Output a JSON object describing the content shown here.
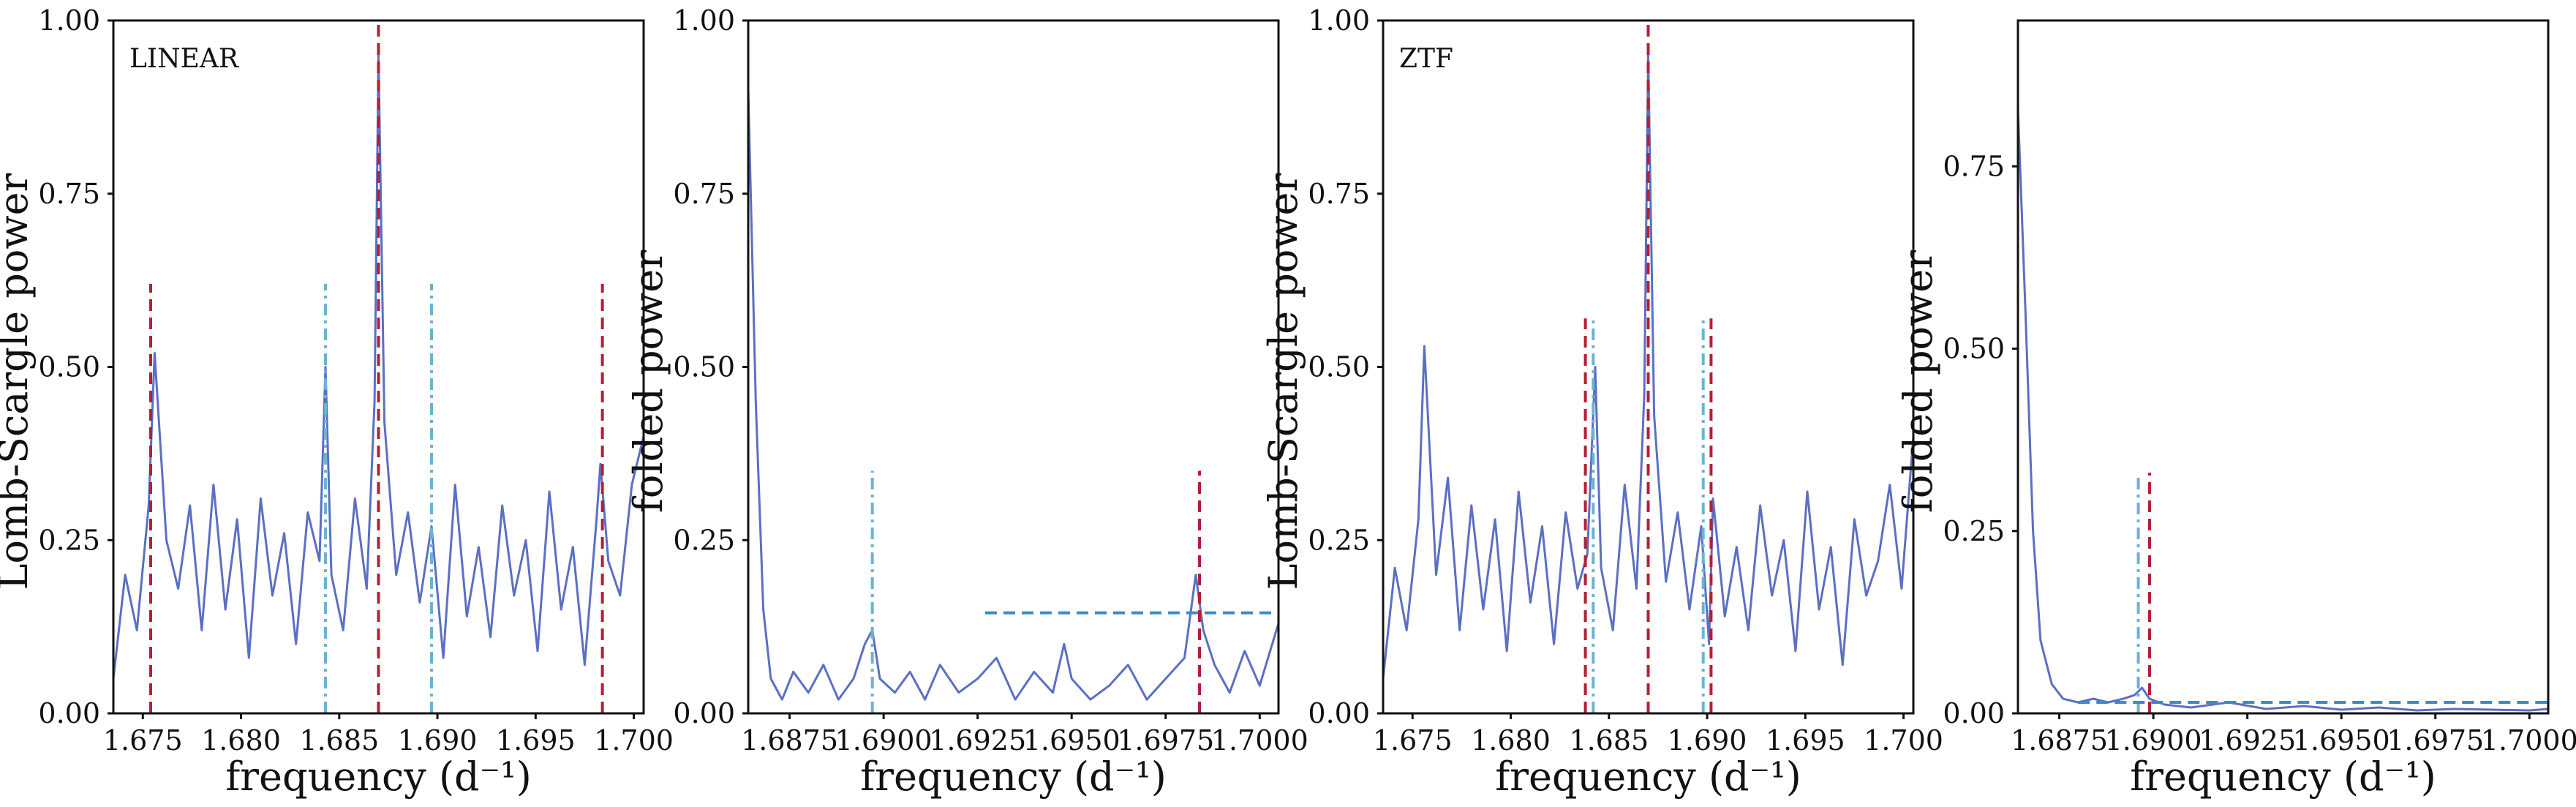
{
  "chart_data": [
    {
      "type": "line",
      "panel_label": "LINEAR",
      "xlabel": "frequency (d⁻¹)",
      "ylabel": "Lomb-Scargle power",
      "xlim": [
        1.6735,
        1.7005
      ],
      "ylim": [
        0,
        1
      ],
      "xticks": [
        1.675,
        1.68,
        1.685,
        1.69,
        1.695,
        1.7
      ],
      "xtick_labels": [
        "1.675",
        "1.680",
        "1.685",
        "1.690",
        "1.695",
        "1.700"
      ],
      "yticks": [
        0,
        0.25,
        0.5,
        0.75,
        1.0
      ],
      "ytick_labels": [
        "0.00",
        "0.25",
        "0.50",
        "0.75",
        "1.00"
      ],
      "series": [
        {
          "color": "#5b6fc4",
          "x": [
            1.6735,
            1.6741,
            1.6747,
            1.6753,
            1.6756,
            1.6762,
            1.6768,
            1.6774,
            1.678,
            1.6786,
            1.6792,
            1.6798,
            1.6804,
            1.681,
            1.6816,
            1.6822,
            1.6828,
            1.6834,
            1.684,
            1.6843,
            1.6846,
            1.6852,
            1.6858,
            1.6864,
            1.6868,
            1.687,
            1.6873,
            1.6879,
            1.6885,
            1.6891,
            1.6897,
            1.6903,
            1.6909,
            1.6915,
            1.6921,
            1.6927,
            1.6933,
            1.6939,
            1.6945,
            1.6951,
            1.6957,
            1.6963,
            1.6969,
            1.6975,
            1.6981,
            1.6983,
            1.6987,
            1.6993,
            1.6999,
            1.7005
          ],
          "y": [
            0.05,
            0.2,
            0.12,
            0.3,
            0.52,
            0.25,
            0.18,
            0.3,
            0.12,
            0.33,
            0.15,
            0.28,
            0.08,
            0.31,
            0.17,
            0.26,
            0.1,
            0.29,
            0.22,
            0.5,
            0.2,
            0.12,
            0.31,
            0.18,
            0.45,
            0.95,
            0.42,
            0.2,
            0.29,
            0.16,
            0.27,
            0.08,
            0.33,
            0.14,
            0.24,
            0.11,
            0.3,
            0.17,
            0.25,
            0.09,
            0.32,
            0.15,
            0.24,
            0.07,
            0.28,
            0.36,
            0.22,
            0.17,
            0.33,
            0.4
          ]
        }
      ],
      "vlines": [
        {
          "x": 1.6754,
          "ymax": 0.62,
          "color": "#b51f34",
          "style": "dashed"
        },
        {
          "x": 1.687,
          "ymax": 1.0,
          "color": "#b51f34",
          "style": "dashed"
        },
        {
          "x": 1.6984,
          "ymax": 0.62,
          "color": "#b51f34",
          "style": "dashed"
        },
        {
          "x": 1.6843,
          "ymax": 0.62,
          "color": "#6bb3d1",
          "style": "dashdot"
        },
        {
          "x": 1.6897,
          "ymax": 0.62,
          "color": "#6bb3d1",
          "style": "dashdot"
        }
      ],
      "hlines": []
    },
    {
      "type": "line",
      "panel_label": "",
      "xlabel": "frequency (d⁻¹)",
      "ylabel": "folded power",
      "xlim": [
        1.6864,
        1.7005
      ],
      "ylim": [
        0,
        1
      ],
      "xticks": [
        1.6875,
        1.69,
        1.6925,
        1.695,
        1.6975,
        1.7
      ],
      "xtick_labels": [
        "1.6875",
        "1.6900",
        "1.6925",
        "1.6950",
        "1.6975",
        "1.7000"
      ],
      "yticks": [
        0,
        0.25,
        0.5,
        0.75,
        1.0
      ],
      "ytick_labels": [
        "0.00",
        "0.25",
        "0.50",
        "0.75",
        "1.00"
      ],
      "series": [
        {
          "color": "#5b6fc4",
          "x": [
            1.6864,
            1.6866,
            1.6868,
            1.687,
            1.6873,
            1.6876,
            1.688,
            1.6884,
            1.6888,
            1.6892,
            1.6895,
            1.6897,
            1.6899,
            1.6903,
            1.6907,
            1.6911,
            1.6915,
            1.692,
            1.6925,
            1.693,
            1.6935,
            1.694,
            1.6945,
            1.6948,
            1.695,
            1.6955,
            1.696,
            1.6965,
            1.697,
            1.6975,
            1.698,
            1.6983,
            1.6985,
            1.6988,
            1.6992,
            1.6996,
            1.7,
            1.7005
          ],
          "y": [
            0.9,
            0.45,
            0.15,
            0.05,
            0.02,
            0.06,
            0.03,
            0.07,
            0.02,
            0.05,
            0.1,
            0.12,
            0.05,
            0.03,
            0.06,
            0.02,
            0.07,
            0.03,
            0.05,
            0.08,
            0.02,
            0.06,
            0.03,
            0.1,
            0.05,
            0.02,
            0.04,
            0.07,
            0.02,
            0.05,
            0.08,
            0.2,
            0.12,
            0.07,
            0.03,
            0.09,
            0.04,
            0.13
          ]
        }
      ],
      "vlines": [
        {
          "x": 1.6984,
          "ymax": 0.35,
          "color": "#b51f34",
          "style": "dashed"
        },
        {
          "x": 1.6897,
          "ymax": 0.35,
          "color": "#6bb3d1",
          "style": "dashdot"
        }
      ],
      "hlines": [
        {
          "y": 0.145,
          "xmin": 1.6927,
          "xmax": 1.7005,
          "color": "#3d8bc4",
          "style": "dashed"
        }
      ]
    },
    {
      "type": "line",
      "panel_label": "ZTF",
      "xlabel": "frequency (d⁻¹)",
      "ylabel": "Lomb-Scargle power",
      "xlim": [
        1.6735,
        1.7005
      ],
      "ylim": [
        0,
        1
      ],
      "xticks": [
        1.675,
        1.68,
        1.685,
        1.69,
        1.695,
        1.7
      ],
      "xtick_labels": [
        "1.675",
        "1.680",
        "1.685",
        "1.690",
        "1.695",
        "1.700"
      ],
      "yticks": [
        0,
        0.25,
        0.5,
        0.75,
        1.0
      ],
      "ytick_labels": [
        "0.00",
        "0.25",
        "0.50",
        "0.75",
        "1.00"
      ],
      "series": [
        {
          "color": "#5b6fc4",
          "x": [
            1.6735,
            1.6741,
            1.6747,
            1.6753,
            1.6756,
            1.6762,
            1.6768,
            1.6774,
            1.678,
            1.6786,
            1.6792,
            1.6798,
            1.6804,
            1.681,
            1.6816,
            1.6822,
            1.6828,
            1.6834,
            1.6839,
            1.6843,
            1.6846,
            1.6852,
            1.6858,
            1.6864,
            1.6868,
            1.687,
            1.6873,
            1.6879,
            1.6885,
            1.6891,
            1.6897,
            1.6901,
            1.6903,
            1.6909,
            1.6915,
            1.6921,
            1.6927,
            1.6933,
            1.6939,
            1.6945,
            1.6951,
            1.6957,
            1.6963,
            1.6969,
            1.6975,
            1.6981,
            1.6987,
            1.6993,
            1.6999,
            1.7005
          ],
          "y": [
            0.05,
            0.21,
            0.12,
            0.28,
            0.53,
            0.2,
            0.34,
            0.12,
            0.3,
            0.15,
            0.28,
            0.09,
            0.32,
            0.16,
            0.27,
            0.1,
            0.29,
            0.18,
            0.23,
            0.5,
            0.21,
            0.12,
            0.33,
            0.18,
            0.46,
            0.95,
            0.43,
            0.19,
            0.29,
            0.15,
            0.27,
            0.1,
            0.31,
            0.14,
            0.24,
            0.12,
            0.3,
            0.17,
            0.25,
            0.09,
            0.32,
            0.15,
            0.24,
            0.07,
            0.28,
            0.17,
            0.22,
            0.33,
            0.18,
            0.4
          ]
        }
      ],
      "vlines": [
        {
          "x": 1.6838,
          "ymax": 0.57,
          "color": "#b51f34",
          "style": "dashed"
        },
        {
          "x": 1.687,
          "ymax": 1.0,
          "color": "#b51f34",
          "style": "dashed"
        },
        {
          "x": 1.6902,
          "ymax": 0.57,
          "color": "#b51f34",
          "style": "dashed"
        },
        {
          "x": 1.6842,
          "ymax": 0.57,
          "color": "#6bb3d1",
          "style": "dashdot"
        },
        {
          "x": 1.6898,
          "ymax": 0.57,
          "color": "#6bb3d1",
          "style": "dashdot"
        }
      ],
      "hlines": []
    },
    {
      "type": "line",
      "panel_label": "",
      "xlabel": "frequency (d⁻¹)",
      "ylabel": "folded power",
      "xlim": [
        1.6864,
        1.7005
      ],
      "ylim": [
        0,
        0.95
      ],
      "xticks": [
        1.6875,
        1.69,
        1.6925,
        1.695,
        1.6975,
        1.7
      ],
      "xtick_labels": [
        "1.6875",
        "1.6900",
        "1.6925",
        "1.6950",
        "1.6975",
        "1.7000"
      ],
      "yticks": [
        0,
        0.25,
        0.5,
        0.75
      ],
      "ytick_labels": [
        "0.00",
        "0.25",
        "0.50",
        "0.75"
      ],
      "series": [
        {
          "color": "#5b6fc4",
          "x": [
            1.6864,
            1.6866,
            1.6868,
            1.687,
            1.6873,
            1.6876,
            1.688,
            1.6884,
            1.6888,
            1.6892,
            1.6895,
            1.6897,
            1.6899,
            1.6903,
            1.691,
            1.692,
            1.693,
            1.694,
            1.695,
            1.696,
            1.697,
            1.698,
            1.699,
            1.7,
            1.7005
          ],
          "y": [
            0.83,
            0.55,
            0.25,
            0.1,
            0.04,
            0.02,
            0.015,
            0.02,
            0.015,
            0.02,
            0.025,
            0.035,
            0.02,
            0.012,
            0.008,
            0.015,
            0.006,
            0.01,
            0.005,
            0.008,
            0.004,
            0.006,
            0.005,
            0.004,
            0.006
          ]
        }
      ],
      "vlines": [
        {
          "x": 1.6899,
          "ymax": 0.33,
          "color": "#b51f34",
          "style": "dashed"
        },
        {
          "x": 1.6896,
          "ymax": 0.33,
          "color": "#6bb3d1",
          "style": "dashdot"
        }
      ],
      "hlines": [
        {
          "y": 0.015,
          "xmin": 1.688,
          "xmax": 1.7005,
          "color": "#3d8bc4",
          "style": "dashed"
        }
      ]
    }
  ]
}
